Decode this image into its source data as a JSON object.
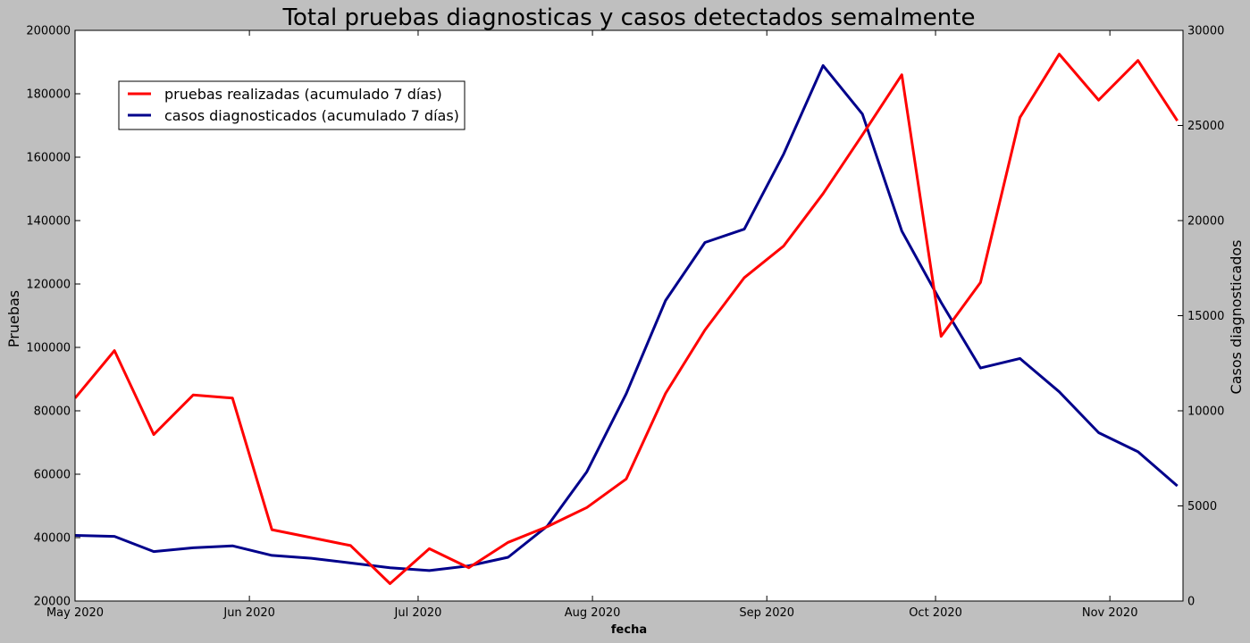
{
  "chart_data": {
    "type": "line",
    "title": "Total pruebas diagnosticas y casos detectados semalmente",
    "xlabel": "fecha",
    "ylabel_left": "Pruebas",
    "ylabel_right": "Casos diagnosticados",
    "x_range": [
      "2020-05-01",
      "2020-11-14"
    ],
    "x_ticks": [
      {
        "date": "2020-05-01",
        "label": "May 2020"
      },
      {
        "date": "2020-06-01",
        "label": "Jun 2020"
      },
      {
        "date": "2020-07-01",
        "label": "Jul 2020"
      },
      {
        "date": "2020-08-01",
        "label": "Aug 2020"
      },
      {
        "date": "2020-09-01",
        "label": "Sep 2020"
      },
      {
        "date": "2020-10-01",
        "label": "Oct 2020"
      },
      {
        "date": "2020-11-01",
        "label": "Nov 2020"
      }
    ],
    "ylim_left": [
      20000,
      200000
    ],
    "yticks_left": [
      "20000",
      "40000",
      "60000",
      "80000",
      "100000",
      "120000",
      "140000",
      "160000",
      "180000",
      "200000"
    ],
    "ylim_right": [
      0,
      30000
    ],
    "yticks_right": [
      "0",
      "5000",
      "10000",
      "15000",
      "20000",
      "25000",
      "30000"
    ],
    "legend_position": "upper-left",
    "x": [
      "2020-05-01",
      "2020-05-08",
      "2020-05-15",
      "2020-05-22",
      "2020-05-29",
      "2020-06-05",
      "2020-06-12",
      "2020-06-19",
      "2020-06-26",
      "2020-07-03",
      "2020-07-10",
      "2020-07-17",
      "2020-07-24",
      "2020-07-31",
      "2020-08-07",
      "2020-08-14",
      "2020-08-21",
      "2020-08-28",
      "2020-09-04",
      "2020-09-11",
      "2020-09-18",
      "2020-09-25",
      "2020-10-02",
      "2020-10-09",
      "2020-10-16",
      "2020-10-23",
      "2020-10-30",
      "2020-11-06",
      "2020-11-13"
    ],
    "series": [
      {
        "name": "pruebas realizadas (acumulado 7 días)",
        "axis": "left",
        "color": "#ff0000",
        "values": [
          84000,
          99000,
          72500,
          85000,
          84000,
          42500,
          40000,
          37500,
          25500,
          36500,
          30500,
          38500,
          43500,
          49500,
          58500,
          85500,
          105500,
          122000,
          132000,
          148500,
          167000,
          186000,
          103500,
          120500,
          172500,
          192500,
          178000,
          190500,
          171500
        ]
      },
      {
        "name": "casos diagnosticados (acumulado 7 días)",
        "axis": "right",
        "color": "#00008b",
        "values": [
          3450,
          3400,
          2600,
          2800,
          2900,
          2400,
          2250,
          2000,
          1750,
          1600,
          1850,
          2300,
          3950,
          6800,
          10900,
          15800,
          18850,
          19550,
          23500,
          28150,
          25600,
          19450,
          15700,
          12250,
          12750,
          11000,
          8850,
          7850,
          6050
        ]
      }
    ]
  }
}
